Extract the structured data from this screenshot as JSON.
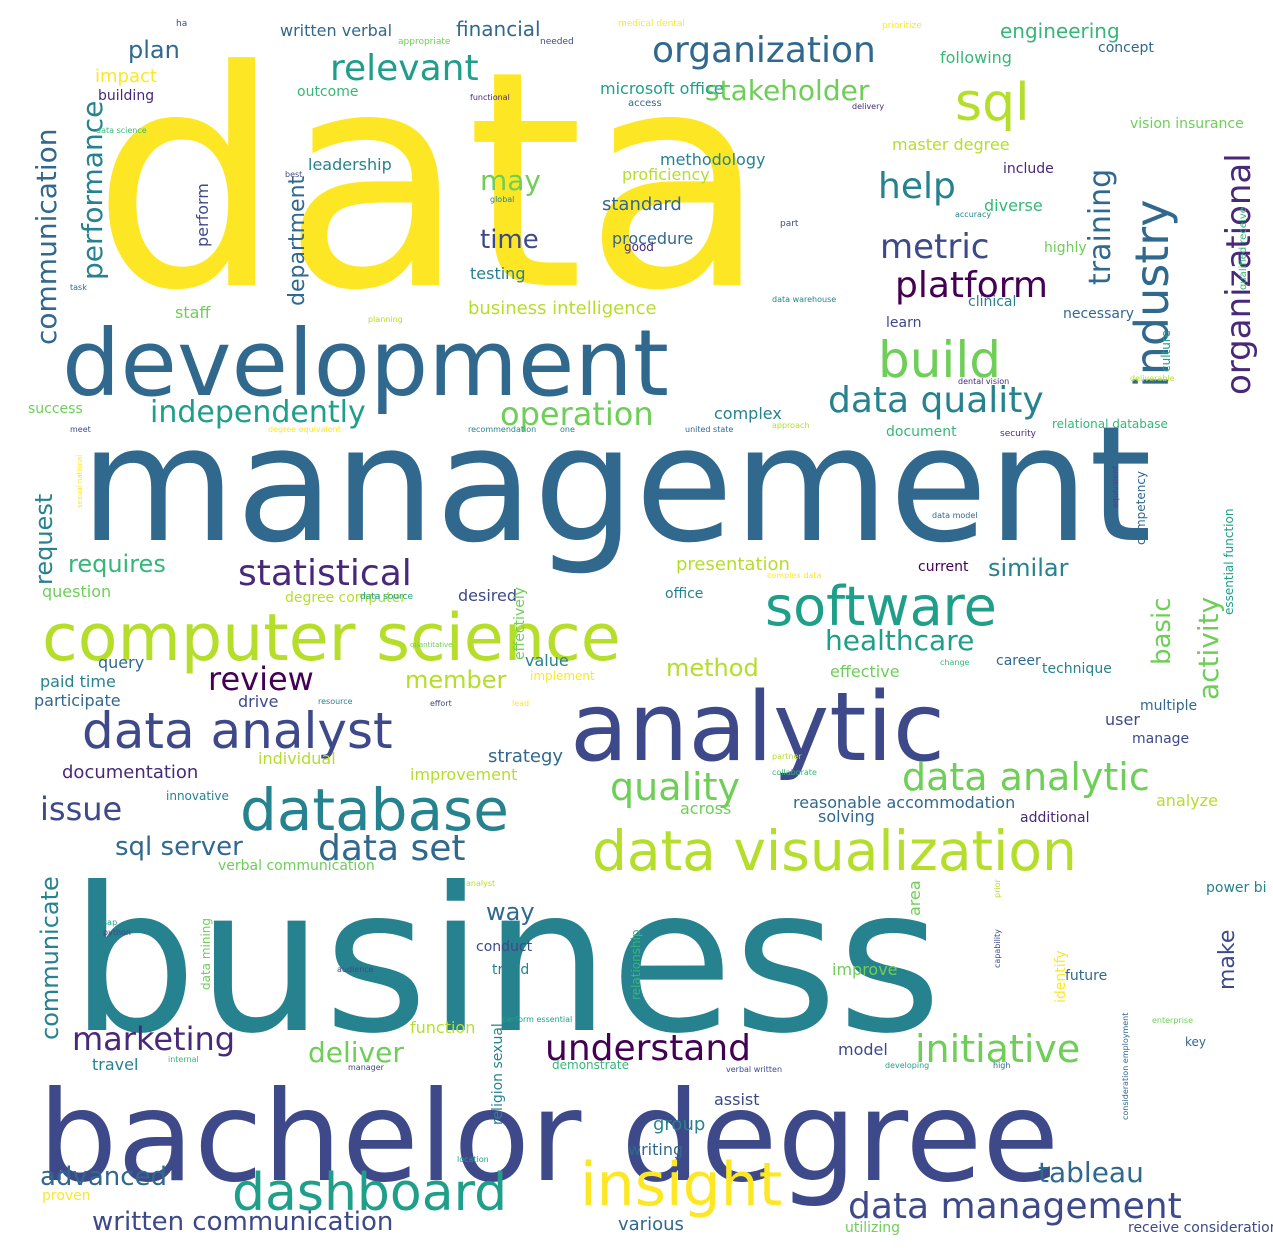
{
  "palette": {
    "yellow": "#fde725",
    "lime": "#b5de2b",
    "green": "#6ece58",
    "sea": "#35b779",
    "teal": "#1f9e89",
    "cyan": "#26828e",
    "blue": "#31688e",
    "indigo": "#3e4989",
    "violet": "#482878",
    "purple": "#440154"
  },
  "words": [
    {
      "text": "data",
      "color": "yellow"
    },
    {
      "text": "management",
      "color": "blue"
    },
    {
      "text": "business",
      "color": "cyan"
    },
    {
      "text": "bachelor degree",
      "color": "indigo"
    },
    {
      "text": "development",
      "color": "blue"
    },
    {
      "text": "analytic",
      "color": "indigo"
    },
    {
      "text": "computer science",
      "color": "lime"
    },
    {
      "text": "database",
      "color": "cyan"
    },
    {
      "text": "data visualization",
      "color": "lime"
    },
    {
      "text": "software",
      "color": "teal"
    },
    {
      "text": "insight",
      "color": "yellow"
    },
    {
      "text": "dashboard",
      "color": "teal"
    },
    {
      "text": "data analyst",
      "color": "indigo"
    },
    {
      "text": "build",
      "color": "green"
    },
    {
      "text": "sql",
      "color": "lime"
    },
    {
      "text": "industry",
      "color": "blue"
    },
    {
      "text": "organization",
      "color": "blue"
    },
    {
      "text": "data analytic",
      "color": "green"
    },
    {
      "text": "initiative",
      "color": "green"
    },
    {
      "text": "data management",
      "color": "indigo"
    },
    {
      "text": "understand",
      "color": "purple"
    },
    {
      "text": "data set",
      "color": "blue"
    },
    {
      "text": "data quality",
      "color": "cyan"
    },
    {
      "text": "platform",
      "color": "purple"
    },
    {
      "text": "statistical",
      "color": "violet"
    },
    {
      "text": "metric",
      "color": "indigo"
    },
    {
      "text": "organizational",
      "color": "violet"
    },
    {
      "text": "quality",
      "color": "green"
    },
    {
      "text": "review",
      "color": "purple"
    },
    {
      "text": "operation",
      "color": "green"
    },
    {
      "text": "independently",
      "color": "teal"
    },
    {
      "text": "relevant",
      "color": "teal"
    },
    {
      "text": "help",
      "color": "cyan"
    },
    {
      "text": "issue",
      "color": "indigo"
    },
    {
      "text": "marketing",
      "color": "violet"
    },
    {
      "text": "healthcare",
      "color": "teal"
    },
    {
      "text": "stakeholder",
      "color": "green"
    },
    {
      "text": "training",
      "color": "blue"
    },
    {
      "text": "communication",
      "color": "blue"
    },
    {
      "text": "performance",
      "color": "cyan"
    },
    {
      "text": "department",
      "color": "blue"
    },
    {
      "text": "time",
      "color": "indigo"
    },
    {
      "text": "may",
      "color": "green"
    },
    {
      "text": "plan",
      "color": "blue"
    },
    {
      "text": "communicate",
      "color": "cyan"
    },
    {
      "text": "sql server",
      "color": "blue"
    },
    {
      "text": "written communication",
      "color": "indigo"
    },
    {
      "text": "tableau",
      "color": "blue"
    },
    {
      "text": "deliver",
      "color": "green"
    },
    {
      "text": "advanced",
      "color": "blue"
    },
    {
      "text": "activity",
      "color": "green"
    },
    {
      "text": "basic",
      "color": "green"
    },
    {
      "text": "requires",
      "color": "sea"
    },
    {
      "text": "similar",
      "color": "cyan"
    },
    {
      "text": "method",
      "color": "lime"
    },
    {
      "text": "member",
      "color": "lime"
    },
    {
      "text": "request",
      "color": "cyan"
    },
    {
      "text": "way",
      "color": "blue"
    },
    {
      "text": "make",
      "color": "indigo"
    },
    {
      "text": "business intelligence",
      "color": "lime"
    },
    {
      "text": "engineering",
      "color": "sea"
    },
    {
      "text": "financial",
      "color": "blue"
    },
    {
      "text": "written verbal",
      "color": "blue"
    },
    {
      "text": "presentation",
      "color": "lime"
    },
    {
      "text": "documentation",
      "color": "violet"
    },
    {
      "text": "strategy",
      "color": "blue"
    },
    {
      "text": "reasonable accommodation",
      "color": "blue"
    },
    {
      "text": "leadership",
      "color": "cyan"
    },
    {
      "text": "methodology",
      "color": "cyan"
    },
    {
      "text": "proficiency",
      "color": "lime"
    },
    {
      "text": "standard",
      "color": "blue"
    },
    {
      "text": "procedure",
      "color": "blue"
    },
    {
      "text": "testing",
      "color": "cyan"
    },
    {
      "text": "master degree",
      "color": "lime"
    },
    {
      "text": "complex",
      "color": "cyan"
    },
    {
      "text": "document",
      "color": "sea"
    },
    {
      "text": "function",
      "color": "lime"
    },
    {
      "text": "travel",
      "color": "cyan"
    },
    {
      "text": "model",
      "color": "indigo"
    },
    {
      "text": "group",
      "color": "cyan"
    },
    {
      "text": "assist",
      "color": "indigo"
    },
    {
      "text": "writing",
      "color": "blue"
    },
    {
      "text": "various",
      "color": "blue"
    },
    {
      "text": "improve",
      "color": "green"
    },
    {
      "text": "future",
      "color": "blue"
    },
    {
      "text": "conduct",
      "color": "indigo"
    },
    {
      "text": "trend",
      "color": "cyan"
    },
    {
      "text": "impact",
      "color": "yellow"
    },
    {
      "text": "building",
      "color": "violet"
    },
    {
      "text": "outcome",
      "color": "sea"
    },
    {
      "text": "microsoft office",
      "color": "teal"
    },
    {
      "text": "access",
      "color": "blue"
    },
    {
      "text": "following",
      "color": "sea"
    },
    {
      "text": "concept",
      "color": "blue"
    },
    {
      "text": "diverse",
      "color": "sea"
    },
    {
      "text": "include",
      "color": "violet"
    },
    {
      "text": "highly",
      "color": "green"
    },
    {
      "text": "clinical",
      "color": "cyan"
    },
    {
      "text": "necessary",
      "color": "blue"
    },
    {
      "text": "learn",
      "color": "indigo"
    },
    {
      "text": "staff",
      "color": "green"
    },
    {
      "text": "perform",
      "color": "indigo"
    },
    {
      "text": "success",
      "color": "green"
    },
    {
      "text": "question",
      "color": "green"
    },
    {
      "text": "degree computer",
      "color": "lime"
    },
    {
      "text": "desired",
      "color": "indigo"
    },
    {
      "text": "office",
      "color": "cyan"
    },
    {
      "text": "current",
      "color": "purple"
    },
    {
      "text": "query",
      "color": "blue"
    },
    {
      "text": "value",
      "color": "cyan"
    },
    {
      "text": "effective",
      "color": "green"
    },
    {
      "text": "technique",
      "color": "cyan"
    },
    {
      "text": "career",
      "color": "blue"
    },
    {
      "text": "paid time",
      "color": "cyan"
    },
    {
      "text": "participate",
      "color": "blue"
    },
    {
      "text": "drive",
      "color": "indigo"
    },
    {
      "text": "individual",
      "color": "lime"
    },
    {
      "text": "improvement",
      "color": "lime"
    },
    {
      "text": "innovative",
      "color": "cyan"
    },
    {
      "text": "across",
      "color": "green"
    },
    {
      "text": "solving",
      "color": "blue"
    },
    {
      "text": "additional",
      "color": "violet"
    },
    {
      "text": "analyze",
      "color": "lime"
    },
    {
      "text": "multiple",
      "color": "blue"
    },
    {
      "text": "user",
      "color": "indigo"
    },
    {
      "text": "manage",
      "color": "indigo"
    },
    {
      "text": "power bi",
      "color": "cyan"
    },
    {
      "text": "key",
      "color": "blue"
    },
    {
      "text": "proven",
      "color": "yellow"
    },
    {
      "text": "utilizing",
      "color": "green"
    },
    {
      "text": "receive consideration",
      "color": "indigo"
    },
    {
      "text": "demonstrate",
      "color": "sea"
    },
    {
      "text": "verbal communication",
      "color": "green"
    },
    {
      "text": "implement",
      "color": "yellow"
    },
    {
      "text": "data source",
      "color": "teal"
    },
    {
      "text": "competency",
      "color": "blue"
    },
    {
      "text": "culture",
      "color": "teal"
    },
    {
      "text": "essential function",
      "color": "teal"
    },
    {
      "text": "qualified receive",
      "color": "sea"
    },
    {
      "text": "relational database",
      "color": "sea"
    },
    {
      "text": "area",
      "color": "green"
    },
    {
      "text": "identify",
      "color": "yellow"
    },
    {
      "text": "data mining",
      "color": "green"
    },
    {
      "text": "relationship",
      "color": "sea"
    },
    {
      "text": "religion sexual",
      "color": "cyan"
    },
    {
      "text": "effectively",
      "color": "green"
    },
    {
      "text": "vision insurance",
      "color": "green"
    },
    {
      "text": "ha",
      "color": "indigo"
    },
    {
      "text": "prioritize",
      "color": "yellow"
    },
    {
      "text": "appropriate",
      "color": "green"
    },
    {
      "text": "medical dental",
      "color": "yellow"
    },
    {
      "text": "needed",
      "color": "indigo"
    },
    {
      "text": "functional",
      "color": "violet"
    },
    {
      "text": "delivery",
      "color": "violet"
    },
    {
      "text": "data science",
      "color": "sea"
    },
    {
      "text": "best",
      "color": "indigo"
    },
    {
      "text": "global",
      "color": "cyan"
    },
    {
      "text": "accuracy",
      "color": "cyan"
    },
    {
      "text": "part",
      "color": "indigo"
    },
    {
      "text": "good",
      "color": "violet"
    },
    {
      "text": "task",
      "color": "blue"
    },
    {
      "text": "planning",
      "color": "lime"
    },
    {
      "text": "data warehouse",
      "color": "cyan"
    },
    {
      "text": "dental vision",
      "color": "violet"
    },
    {
      "text": "deliverable",
      "color": "lime"
    },
    {
      "text": "meet",
      "color": "indigo"
    },
    {
      "text": "degree equivalent",
      "color": "yellow"
    },
    {
      "text": "recommendation",
      "color": "cyan"
    },
    {
      "text": "one",
      "color": "cyan"
    },
    {
      "text": "united state",
      "color": "blue"
    },
    {
      "text": "approach",
      "color": "lime"
    },
    {
      "text": "security",
      "color": "violet"
    },
    {
      "text": "sexual national",
      "color": "yellow"
    },
    {
      "text": "data model",
      "color": "blue"
    },
    {
      "text": "equivalent",
      "color": "indigo"
    },
    {
      "text": "complex data",
      "color": "yellow"
    },
    {
      "text": "quantitative",
      "color": "green"
    },
    {
      "text": "change",
      "color": "sea"
    },
    {
      "text": "resource",
      "color": "cyan"
    },
    {
      "text": "effort",
      "color": "indigo"
    },
    {
      "text": "lead",
      "color": "yellow"
    },
    {
      "text": "partner",
      "color": "lime"
    },
    {
      "text": "collaborate",
      "color": "sea"
    },
    {
      "text": "analyst",
      "color": "lime"
    },
    {
      "text": "prior",
      "color": "lime"
    },
    {
      "text": "sap",
      "color": "teal"
    },
    {
      "text": "python",
      "color": "indigo"
    },
    {
      "text": "audience",
      "color": "indigo"
    },
    {
      "text": "capability",
      "color": "indigo"
    },
    {
      "text": "perform essential",
      "color": "teal"
    },
    {
      "text": "enterprise",
      "color": "green"
    },
    {
      "text": "internal",
      "color": "sea"
    },
    {
      "text": "manager",
      "color": "indigo"
    },
    {
      "text": "verbal written",
      "color": "indigo"
    },
    {
      "text": "developing",
      "color": "teal"
    },
    {
      "text": "high",
      "color": "blue"
    },
    {
      "text": "consideration employment",
      "color": "blue"
    },
    {
      "text": "location",
      "color": "teal"
    },
    {
      "text": "others",
      "color": "blue"
    }
  ]
}
